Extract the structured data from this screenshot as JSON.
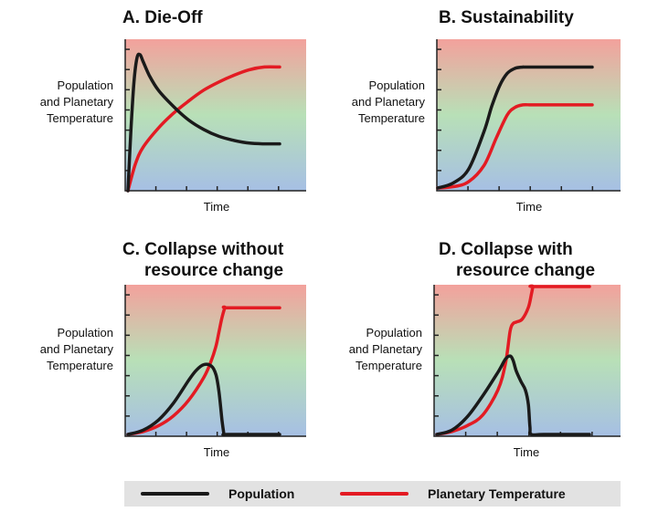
{
  "colors": {
    "population": "#1a1a1a",
    "temperature": "#e31b23",
    "bg_top": "#f3a19c",
    "bg_mid": "#b8e0b7",
    "bg_bottom": "#a6bfe4"
  },
  "legend": {
    "population": "Population",
    "temperature": "Planetary Temperature"
  },
  "panels": {
    "a": {
      "title1": "A. Die-Off",
      "title2": "",
      "ylabel1": "Population",
      "ylabel2": "and Planetary",
      "ylabel3": "Temperature",
      "xlabel": "Time"
    },
    "b": {
      "title1": "B. Sustainability",
      "title2": "",
      "ylabel1": "Population",
      "ylabel2": "and Planetary",
      "ylabel3": "Temperature",
      "xlabel": "Time"
    },
    "c": {
      "title1": "C. Collapse without",
      "title2": "resource change",
      "ylabel1": "Population",
      "ylabel2": "and Planetary",
      "ylabel3": "Temperature",
      "xlabel": "Time"
    },
    "d": {
      "title1": "D. Collapse with",
      "title2": "resource change",
      "ylabel1": "Population",
      "ylabel2": "and Planetary",
      "ylabel3": "Temperature",
      "xlabel": "Time"
    }
  },
  "chart_data": [
    {
      "type": "line",
      "title": "A. Die-Off",
      "xlabel": "Time",
      "ylabel": "Population and Planetary Temperature",
      "xlim": [
        0,
        1
      ],
      "ylim": [
        0,
        1
      ],
      "grid": false,
      "series": [
        {
          "name": "Population",
          "color": "#1a1a1a",
          "x": [
            0,
            0.02,
            0.04,
            0.06,
            0.08,
            0.1,
            0.14,
            0.2,
            0.3,
            0.4,
            0.5,
            0.6,
            0.7,
            0.8,
            0.9,
            1.0
          ],
          "y": [
            0,
            0.45,
            0.8,
            0.98,
            1.0,
            0.95,
            0.85,
            0.74,
            0.62,
            0.52,
            0.45,
            0.4,
            0.37,
            0.35,
            0.345,
            0.345
          ]
        },
        {
          "name": "Planetary Temperature",
          "color": "#e31b23",
          "x": [
            0,
            0.05,
            0.1,
            0.2,
            0.3,
            0.4,
            0.5,
            0.6,
            0.7,
            0.8,
            0.9,
            1.0
          ],
          "y": [
            0,
            0.2,
            0.32,
            0.46,
            0.57,
            0.66,
            0.74,
            0.8,
            0.85,
            0.89,
            0.91,
            0.91
          ]
        }
      ]
    },
    {
      "type": "line",
      "title": "B. Sustainability",
      "xlabel": "Time",
      "ylabel": "Population and Planetary Temperature",
      "xlim": [
        0,
        1
      ],
      "ylim": [
        0,
        1
      ],
      "grid": false,
      "series": [
        {
          "name": "Population",
          "color": "#1a1a1a",
          "x": [
            0,
            0.1,
            0.2,
            0.3,
            0.35,
            0.4,
            0.45,
            0.5,
            0.55,
            0.6,
            1.0
          ],
          "y": [
            0,
            0.04,
            0.15,
            0.45,
            0.65,
            0.81,
            0.91,
            0.95,
            0.96,
            0.96,
            0.96
          ]
        },
        {
          "name": "Planetary Temperature",
          "color": "#e31b23",
          "x": [
            0,
            0.1,
            0.2,
            0.3,
            0.38,
            0.45,
            0.5,
            0.55,
            0.6,
            0.65,
            1.0
          ],
          "y": [
            0,
            0.01,
            0.05,
            0.18,
            0.4,
            0.58,
            0.64,
            0.66,
            0.66,
            0.66,
            0.66
          ]
        }
      ]
    },
    {
      "type": "line",
      "title": "C. Collapse without resource change",
      "xlabel": "Time",
      "ylabel": "Population and Planetary Temperature",
      "xlim": [
        0,
        1
      ],
      "ylim": [
        0,
        1
      ],
      "grid": false,
      "series": [
        {
          "name": "Population",
          "color": "#1a1a1a",
          "x": [
            0,
            0.1,
            0.2,
            0.3,
            0.4,
            0.45,
            0.5,
            0.55,
            0.58,
            0.6,
            0.62,
            0.63,
            0.635,
            0.66,
            1.0
          ],
          "y": [
            0,
            0.03,
            0.1,
            0.22,
            0.38,
            0.45,
            0.49,
            0.48,
            0.42,
            0.3,
            0.1,
            0.02,
            0,
            0,
            0
          ]
        },
        {
          "name": "Planetary Temperature",
          "color": "#e31b23",
          "x": [
            0,
            0.1,
            0.2,
            0.3,
            0.4,
            0.5,
            0.55,
            0.58,
            0.6,
            0.62,
            0.64,
            0.66,
            1.0
          ],
          "y": [
            0,
            0.02,
            0.06,
            0.13,
            0.24,
            0.4,
            0.52,
            0.62,
            0.72,
            0.82,
            0.89,
            0.89,
            0.89
          ]
        }
      ]
    },
    {
      "type": "line",
      "title": "D. Collapse with resource change",
      "xlabel": "Time",
      "ylabel": "Population and Planetary Temperature",
      "xlim": [
        0,
        1
      ],
      "ylim": [
        0,
        1
      ],
      "grid": false,
      "series": [
        {
          "name": "Population",
          "color": "#1a1a1a",
          "x": [
            0,
            0.1,
            0.2,
            0.3,
            0.4,
            0.45,
            0.48,
            0.5,
            0.52,
            0.55,
            0.58,
            0.6,
            0.61,
            0.62,
            0.7,
            1.0
          ],
          "y": [
            0,
            0.03,
            0.12,
            0.26,
            0.42,
            0.51,
            0.53,
            0.5,
            0.43,
            0.36,
            0.3,
            0.2,
            0.05,
            0,
            0,
            0
          ]
        },
        {
          "name": "Planetary Temperature",
          "color": "#e31b23",
          "x": [
            0,
            0.1,
            0.2,
            0.3,
            0.4,
            0.45,
            0.48,
            0.5,
            0.52,
            0.56,
            0.6,
            0.62,
            0.63,
            0.64,
            1.0
          ],
          "y": [
            0,
            0.02,
            0.06,
            0.13,
            0.3,
            0.48,
            0.7,
            0.75,
            0.76,
            0.78,
            0.86,
            0.95,
            1.0,
            1.0,
            1.0
          ]
        }
      ]
    }
  ]
}
